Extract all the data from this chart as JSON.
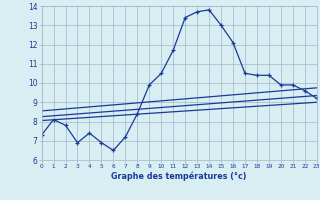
{
  "xlabel": "Graphe des températures (°c)",
  "bg_color": "#d8eef2",
  "plot_bg_color": "#d8eef2",
  "grid_color": "#a0b8c8",
  "line_color": "#1a3a9a",
  "xlim": [
    0,
    23
  ],
  "ylim": [
    6,
    14
  ],
  "xticks": [
    0,
    1,
    2,
    3,
    4,
    5,
    6,
    7,
    8,
    9,
    10,
    11,
    12,
    13,
    14,
    15,
    16,
    17,
    18,
    19,
    20,
    21,
    22,
    23
  ],
  "yticks": [
    6,
    7,
    8,
    9,
    10,
    11,
    12,
    13,
    14
  ],
  "line1_x": [
    0,
    1,
    2,
    3,
    4,
    5,
    6,
    7,
    8,
    9,
    10,
    11,
    12,
    13,
    14,
    15,
    16,
    17,
    18,
    19,
    20,
    21,
    22,
    23
  ],
  "line1_y": [
    7.3,
    8.1,
    7.8,
    6.9,
    7.4,
    6.9,
    6.5,
    7.2,
    8.4,
    9.9,
    10.5,
    11.7,
    13.4,
    13.7,
    13.8,
    13.0,
    12.1,
    10.5,
    10.4,
    10.4,
    9.9,
    9.9,
    9.6,
    9.2
  ],
  "line2_x": [
    0,
    23
  ],
  "line2_y": [
    8.05,
    9.0
  ],
  "line3_x": [
    0,
    23
  ],
  "line3_y": [
    8.25,
    9.35
  ],
  "line4_x": [
    0,
    23
  ],
  "line4_y": [
    8.55,
    9.75
  ]
}
